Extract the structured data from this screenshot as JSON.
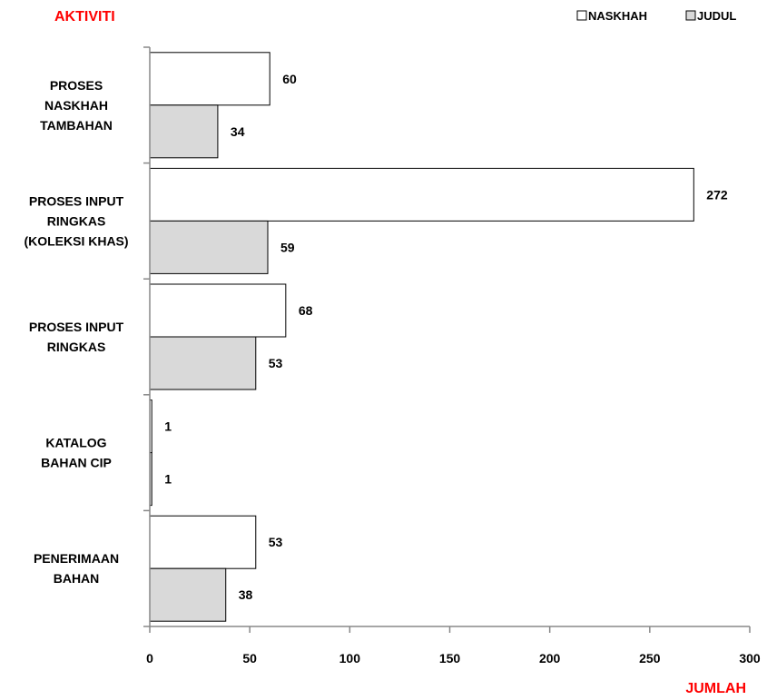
{
  "chart_data": {
    "type": "bar",
    "orientation": "horizontal",
    "y_axis_title": "AKTIVITI",
    "x_axis_title": "JUMLAH",
    "categories": [
      [
        "PROSES",
        "NASKHAH",
        "TAMBAHAN"
      ],
      [
        "PROSES INPUT",
        "RINGKAS",
        "(KOLEKSI KHAS)"
      ],
      [
        "PROSES INPUT",
        "RINGKAS"
      ],
      [
        "KATALOG",
        "BAHAN CIP"
      ],
      [
        "PENERIMAAN",
        "BAHAN"
      ]
    ],
    "series": [
      {
        "name": "NASKHAH",
        "values": [
          60,
          272,
          68,
          1,
          53
        ],
        "color": "#ffffff"
      },
      {
        "name": "JUDUL",
        "values": [
          34,
          59,
          53,
          1,
          38
        ],
        "color": "#d9d9d9"
      }
    ],
    "xlim": [
      0,
      300
    ],
    "x_ticks": [
      0,
      50,
      100,
      150,
      200,
      250,
      300
    ],
    "legend_position": "top-right",
    "grid": false,
    "accent_color": "#ff0000"
  }
}
